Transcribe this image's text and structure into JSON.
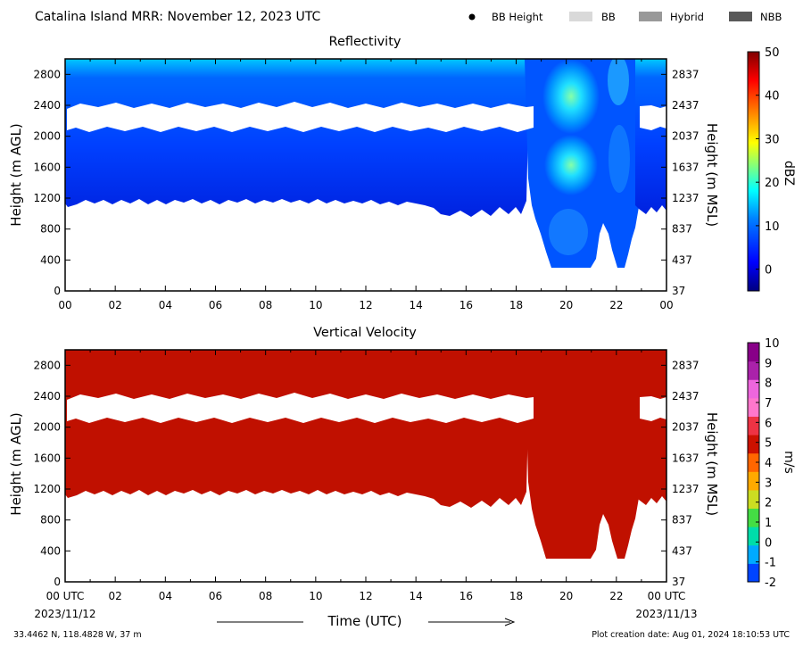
{
  "header": {
    "title": "Catalina Island MRR:  November 12, 2023 UTC",
    "legend": [
      {
        "label": "BB Height",
        "marker": "dot",
        "color": "#000000"
      },
      {
        "label": "BB",
        "marker": "box",
        "color": "#d9d9d9"
      },
      {
        "label": "Hybrid",
        "marker": "box",
        "color": "#999999"
      },
      {
        "label": "NBB",
        "marker": "box",
        "color": "#595959"
      }
    ]
  },
  "footer": {
    "location": "33.4462 N, 118.4828 W, 37 m",
    "creation": "Plot creation date: Aug 01, 2024 18:10:53 UTC",
    "time_axis_label": "Time (UTC)",
    "date_start": "2023/11/12",
    "date_end": "2023/11/13"
  },
  "chart_data": [
    {
      "type": "heatmap",
      "title": "Reflectivity",
      "ylabel": "Height (m AGL)",
      "ylabel_right": "Height (m MSL)",
      "x_ticks": [
        "00",
        "02",
        "04",
        "06",
        "08",
        "10",
        "12",
        "14",
        "16",
        "18",
        "20",
        "22",
        "00"
      ],
      "xlim_hours": [
        0,
        24
      ],
      "ylim_m": [
        0,
        3000
      ],
      "y_ticks": [
        0,
        400,
        800,
        1200,
        1600,
        2000,
        2400,
        2800
      ],
      "y_ticks_right": [
        "37",
        "437",
        "837",
        "1237",
        "1637",
        "2037",
        "2437",
        "2837"
      ],
      "colorbar": {
        "label": "dBZ",
        "range": [
          -5,
          50
        ],
        "ticks": [
          "0",
          "10",
          "20",
          "30",
          "40",
          "50"
        ],
        "colors": [
          "#00007f",
          "#0000ff",
          "#007fff",
          "#00ffff",
          "#7fff7f",
          "#ffff00",
          "#ff7f00",
          "#ff0000",
          "#7f0000"
        ]
      },
      "echo_regions": [
        {
          "name": "shallow layer",
          "t_start": 0,
          "t_end": 18.9,
          "base_m": 1100,
          "top_m": 3000,
          "gap_m": [
            2100,
            2450
          ]
        },
        {
          "name": "precip band",
          "t_start": 18.9,
          "t_end": 24,
          "base_m": 300,
          "top_m": 3000
        },
        {
          "name": "upper layer",
          "t_start": 22.7,
          "t_end": 24,
          "base_m": 1100,
          "top_m": 3000,
          "gap_m": [
            2100,
            2450
          ]
        }
      ]
    },
    {
      "type": "heatmap",
      "title": "Vertical Velocity",
      "ylabel": "Height (m AGL)",
      "ylabel_right": "Height (m MSL)",
      "x_ticks": [
        "00 UTC",
        "02",
        "04",
        "06",
        "08",
        "10",
        "12",
        "14",
        "16",
        "18",
        "20",
        "22",
        "00 UTC"
      ],
      "xlim_hours": [
        0,
        24
      ],
      "ylim_m": [
        0,
        3000
      ],
      "y_ticks": [
        0,
        400,
        800,
        1200,
        1600,
        2000,
        2400,
        2800
      ],
      "y_ticks_right": [
        "37",
        "437",
        "837",
        "1237",
        "1637",
        "2037",
        "2437",
        "2837"
      ],
      "colorbar": {
        "label": "m/s",
        "range": [
          -2,
          10
        ],
        "ticks": [
          "-2",
          "-1",
          "0",
          "1",
          "2",
          "3",
          "4",
          "5",
          "6",
          "7",
          "8",
          "9",
          "10"
        ],
        "colors": [
          "#0044ff",
          "#00aaff",
          "#00ddaa",
          "#44dd44",
          "#ccdd22",
          "#ffaa00",
          "#ff6600",
          "#cc1100",
          "#ee3344",
          "#ff77cc",
          "#ee66dd",
          "#aa22aa",
          "#880088"
        ]
      },
      "velocity_fill_color": "#c01000"
    }
  ]
}
